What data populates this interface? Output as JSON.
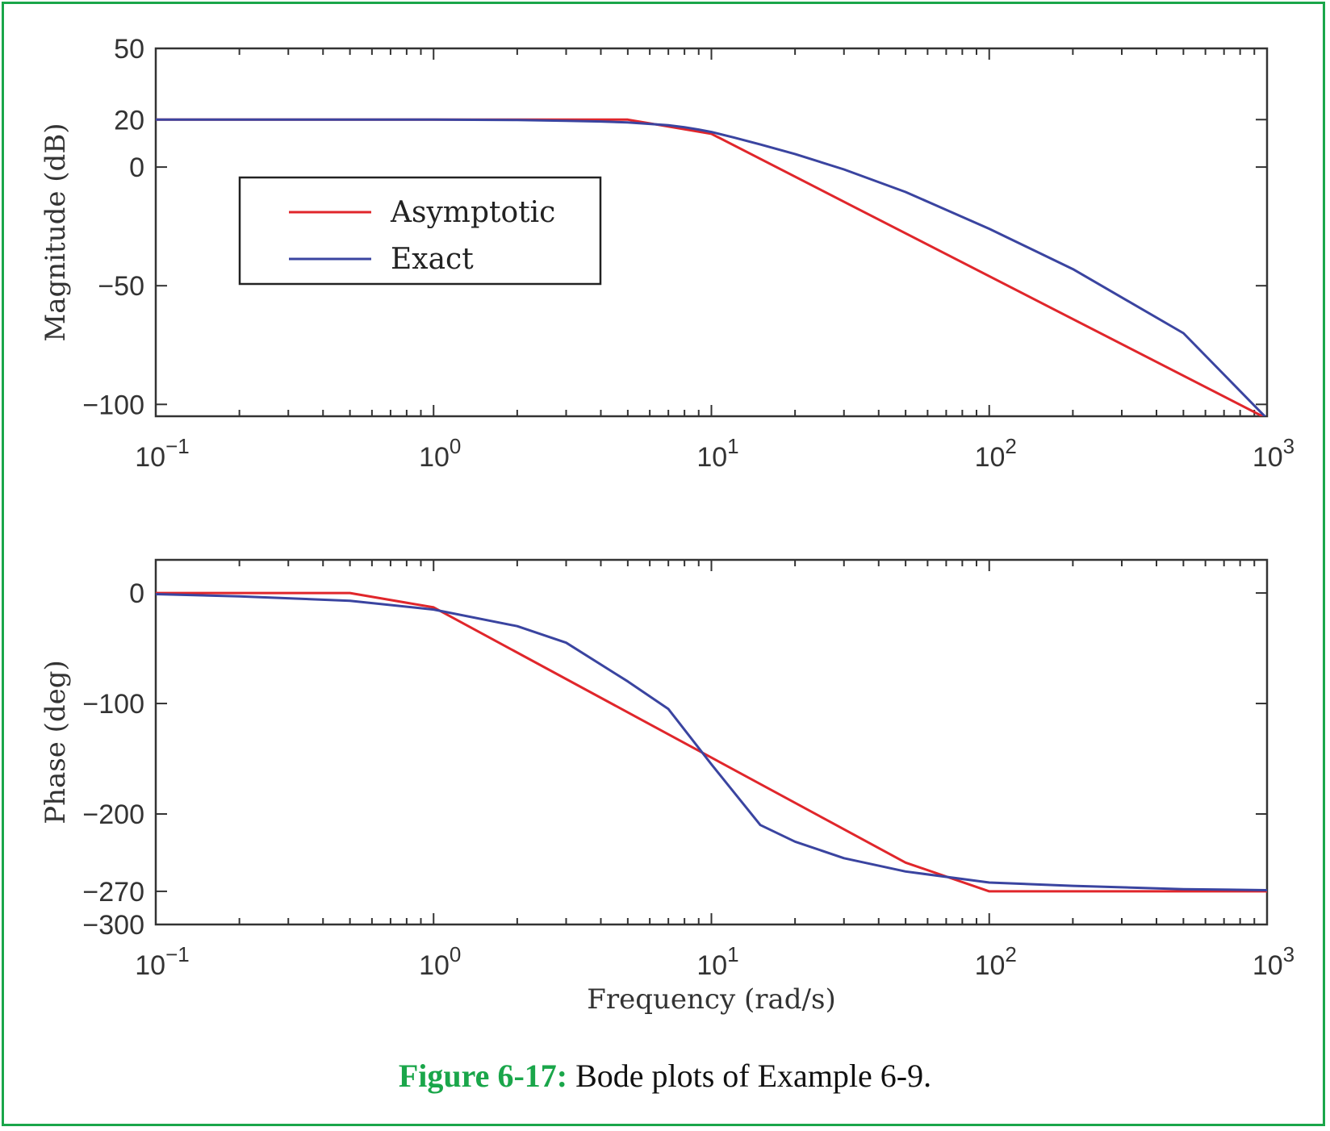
{
  "chart_data": [
    {
      "type": "line",
      "x_scale": "log",
      "xlim": [
        0.1,
        1000
      ],
      "ylim": [
        -105,
        50
      ],
      "xlabel": "",
      "ylabel": "Magnitude (dB)",
      "y_ticks": [
        50,
        20,
        0,
        -50,
        -100
      ],
      "y_tick_labels": [
        "50",
        "20",
        "0",
        "−50",
        "−100"
      ],
      "x_ticks": [
        0.1,
        1,
        10,
        100,
        1000
      ],
      "x_tick_labels": [
        {
          "base": "10",
          "exp": "−1"
        },
        {
          "base": "10",
          "exp": "0"
        },
        {
          "base": "10",
          "exp": "1"
        },
        {
          "base": "10",
          "exp": "2"
        },
        {
          "base": "10",
          "exp": "3"
        }
      ],
      "legend": {
        "position": "upper-left",
        "entries": [
          "Asymptotic",
          "Exact"
        ]
      },
      "series": [
        {
          "name": "Asymptotic",
          "color": "#e0262b",
          "x": [
            0.1,
            5,
            10,
            1000
          ],
          "y": [
            20,
            20,
            14,
            -106
          ]
        },
        {
          "name": "Exact",
          "color": "#3a44a0",
          "x": [
            0.1,
            1,
            2,
            3,
            4,
            5,
            6,
            7,
            8,
            9,
            10,
            12,
            15,
            20,
            30,
            50,
            100,
            200,
            500,
            1000
          ],
          "y": [
            20,
            20,
            19.8,
            19.5,
            19.2,
            18.8,
            18.2,
            17.6,
            16.8,
            15.8,
            14.8,
            12.5,
            9.5,
            5.5,
            -1,
            -10.5,
            -26,
            -43,
            -70,
            -106
          ]
        }
      ]
    },
    {
      "type": "line",
      "x_scale": "log",
      "xlim": [
        0.1,
        1000
      ],
      "ylim": [
        -300,
        30
      ],
      "xlabel": "Frequency (rad/s)",
      "ylabel": "Phase (deg)",
      "y_ticks": [
        0,
        -100,
        -200,
        -270,
        -300
      ],
      "y_tick_labels": [
        "0",
        "−100",
        "−200",
        "−270",
        "−300"
      ],
      "x_ticks": [
        0.1,
        1,
        10,
        100,
        1000
      ],
      "x_tick_labels": [
        {
          "base": "10",
          "exp": "−1"
        },
        {
          "base": "10",
          "exp": "0"
        },
        {
          "base": "10",
          "exp": "1"
        },
        {
          "base": "10",
          "exp": "2"
        },
        {
          "base": "10",
          "exp": "3"
        }
      ],
      "series": [
        {
          "name": "Asymptotic",
          "color": "#e0262b",
          "x": [
            0.1,
            0.5,
            1,
            50,
            100,
            1000
          ],
          "y": [
            0,
            0,
            -13,
            -244,
            -270,
            -270
          ]
        },
        {
          "name": "Exact",
          "color": "#3a44a0",
          "x": [
            0.1,
            0.2,
            0.5,
            1,
            2,
            3,
            5,
            7,
            10,
            15,
            20,
            30,
            50,
            100,
            200,
            500,
            1000
          ],
          "y": [
            -1,
            -3,
            -7,
            -15,
            -30,
            -45,
            -80,
            -105,
            -155,
            -210,
            -225,
            -240,
            -252,
            -262,
            -265,
            -268,
            -269
          ]
        }
      ]
    }
  ],
  "caption": {
    "number": "Figure 6-17:",
    "text": " Bode plots of Example 6-9."
  }
}
